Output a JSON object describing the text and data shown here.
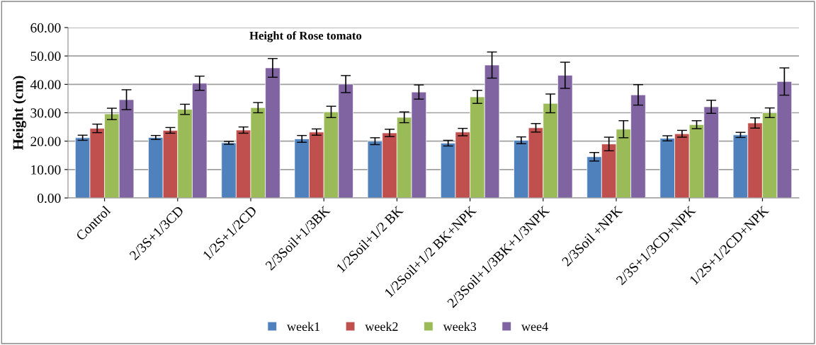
{
  "chart_data": {
    "type": "bar",
    "title": "Height of Rose tomato",
    "ylabel": "Height (cm)",
    "categories": [
      "Control",
      "2/3S+1/3CD",
      "1/2S+1/2CD",
      "2/3Soil+1/3BK",
      "1/2Soil+1/2 BK",
      "1/2Soil+1/2 BK+NPK",
      "2/3Soil+1/3BK+1/3NPK",
      "2/3Soil +NPK",
      "2/3S+1/3CD+NPK",
      "1/2S+1/2CD+NPK"
    ],
    "series": [
      {
        "name": "week1",
        "color": "#4f81bd",
        "values": [
          21.2,
          21.3,
          19.4,
          20.8,
          20.0,
          19.3,
          20.3,
          14.5,
          21.0,
          22.2
        ],
        "errors": [
          0.9,
          0.7,
          0.5,
          1.2,
          1.2,
          1.0,
          1.2,
          1.5,
          0.9,
          0.9
        ]
      },
      {
        "name": "week2",
        "color": "#c0504d",
        "values": [
          24.5,
          23.8,
          23.9,
          23.2,
          22.9,
          23.2,
          24.7,
          19.0,
          22.6,
          26.4
        ],
        "errors": [
          1.5,
          1.0,
          1.1,
          1.1,
          1.3,
          1.3,
          1.5,
          2.4,
          1.2,
          1.8
        ]
      },
      {
        "name": "week3",
        "color": "#9bbb59",
        "values": [
          29.6,
          31.2,
          31.8,
          30.3,
          28.4,
          35.6,
          33.3,
          24.2,
          25.8,
          30.0
        ],
        "errors": [
          2.0,
          1.8,
          1.8,
          2.0,
          1.9,
          2.3,
          3.3,
          3.0,
          1.4,
          1.7
        ]
      },
      {
        "name": "wee4",
        "color": "#8064a2",
        "values": [
          34.6,
          40.4,
          45.8,
          40.1,
          37.3,
          46.8,
          43.2,
          36.3,
          32.1,
          41.0
        ],
        "errors": [
          3.5,
          2.5,
          3.3,
          3.0,
          2.5,
          4.6,
          4.6,
          3.6,
          2.3,
          4.8
        ]
      }
    ],
    "ylim": [
      0,
      60
    ],
    "yticks": [
      {
        "value": 0,
        "label": "0.00"
      },
      {
        "value": 10,
        "label": "10.00"
      },
      {
        "value": 20,
        "label": "20.00"
      },
      {
        "value": 30,
        "label": "30.00"
      },
      {
        "value": 40,
        "label": "40.00"
      },
      {
        "value": 50,
        "label": "50.00"
      },
      {
        "value": 60,
        "label": "60.00"
      }
    ],
    "grid": "y",
    "legend": "bottom"
  }
}
